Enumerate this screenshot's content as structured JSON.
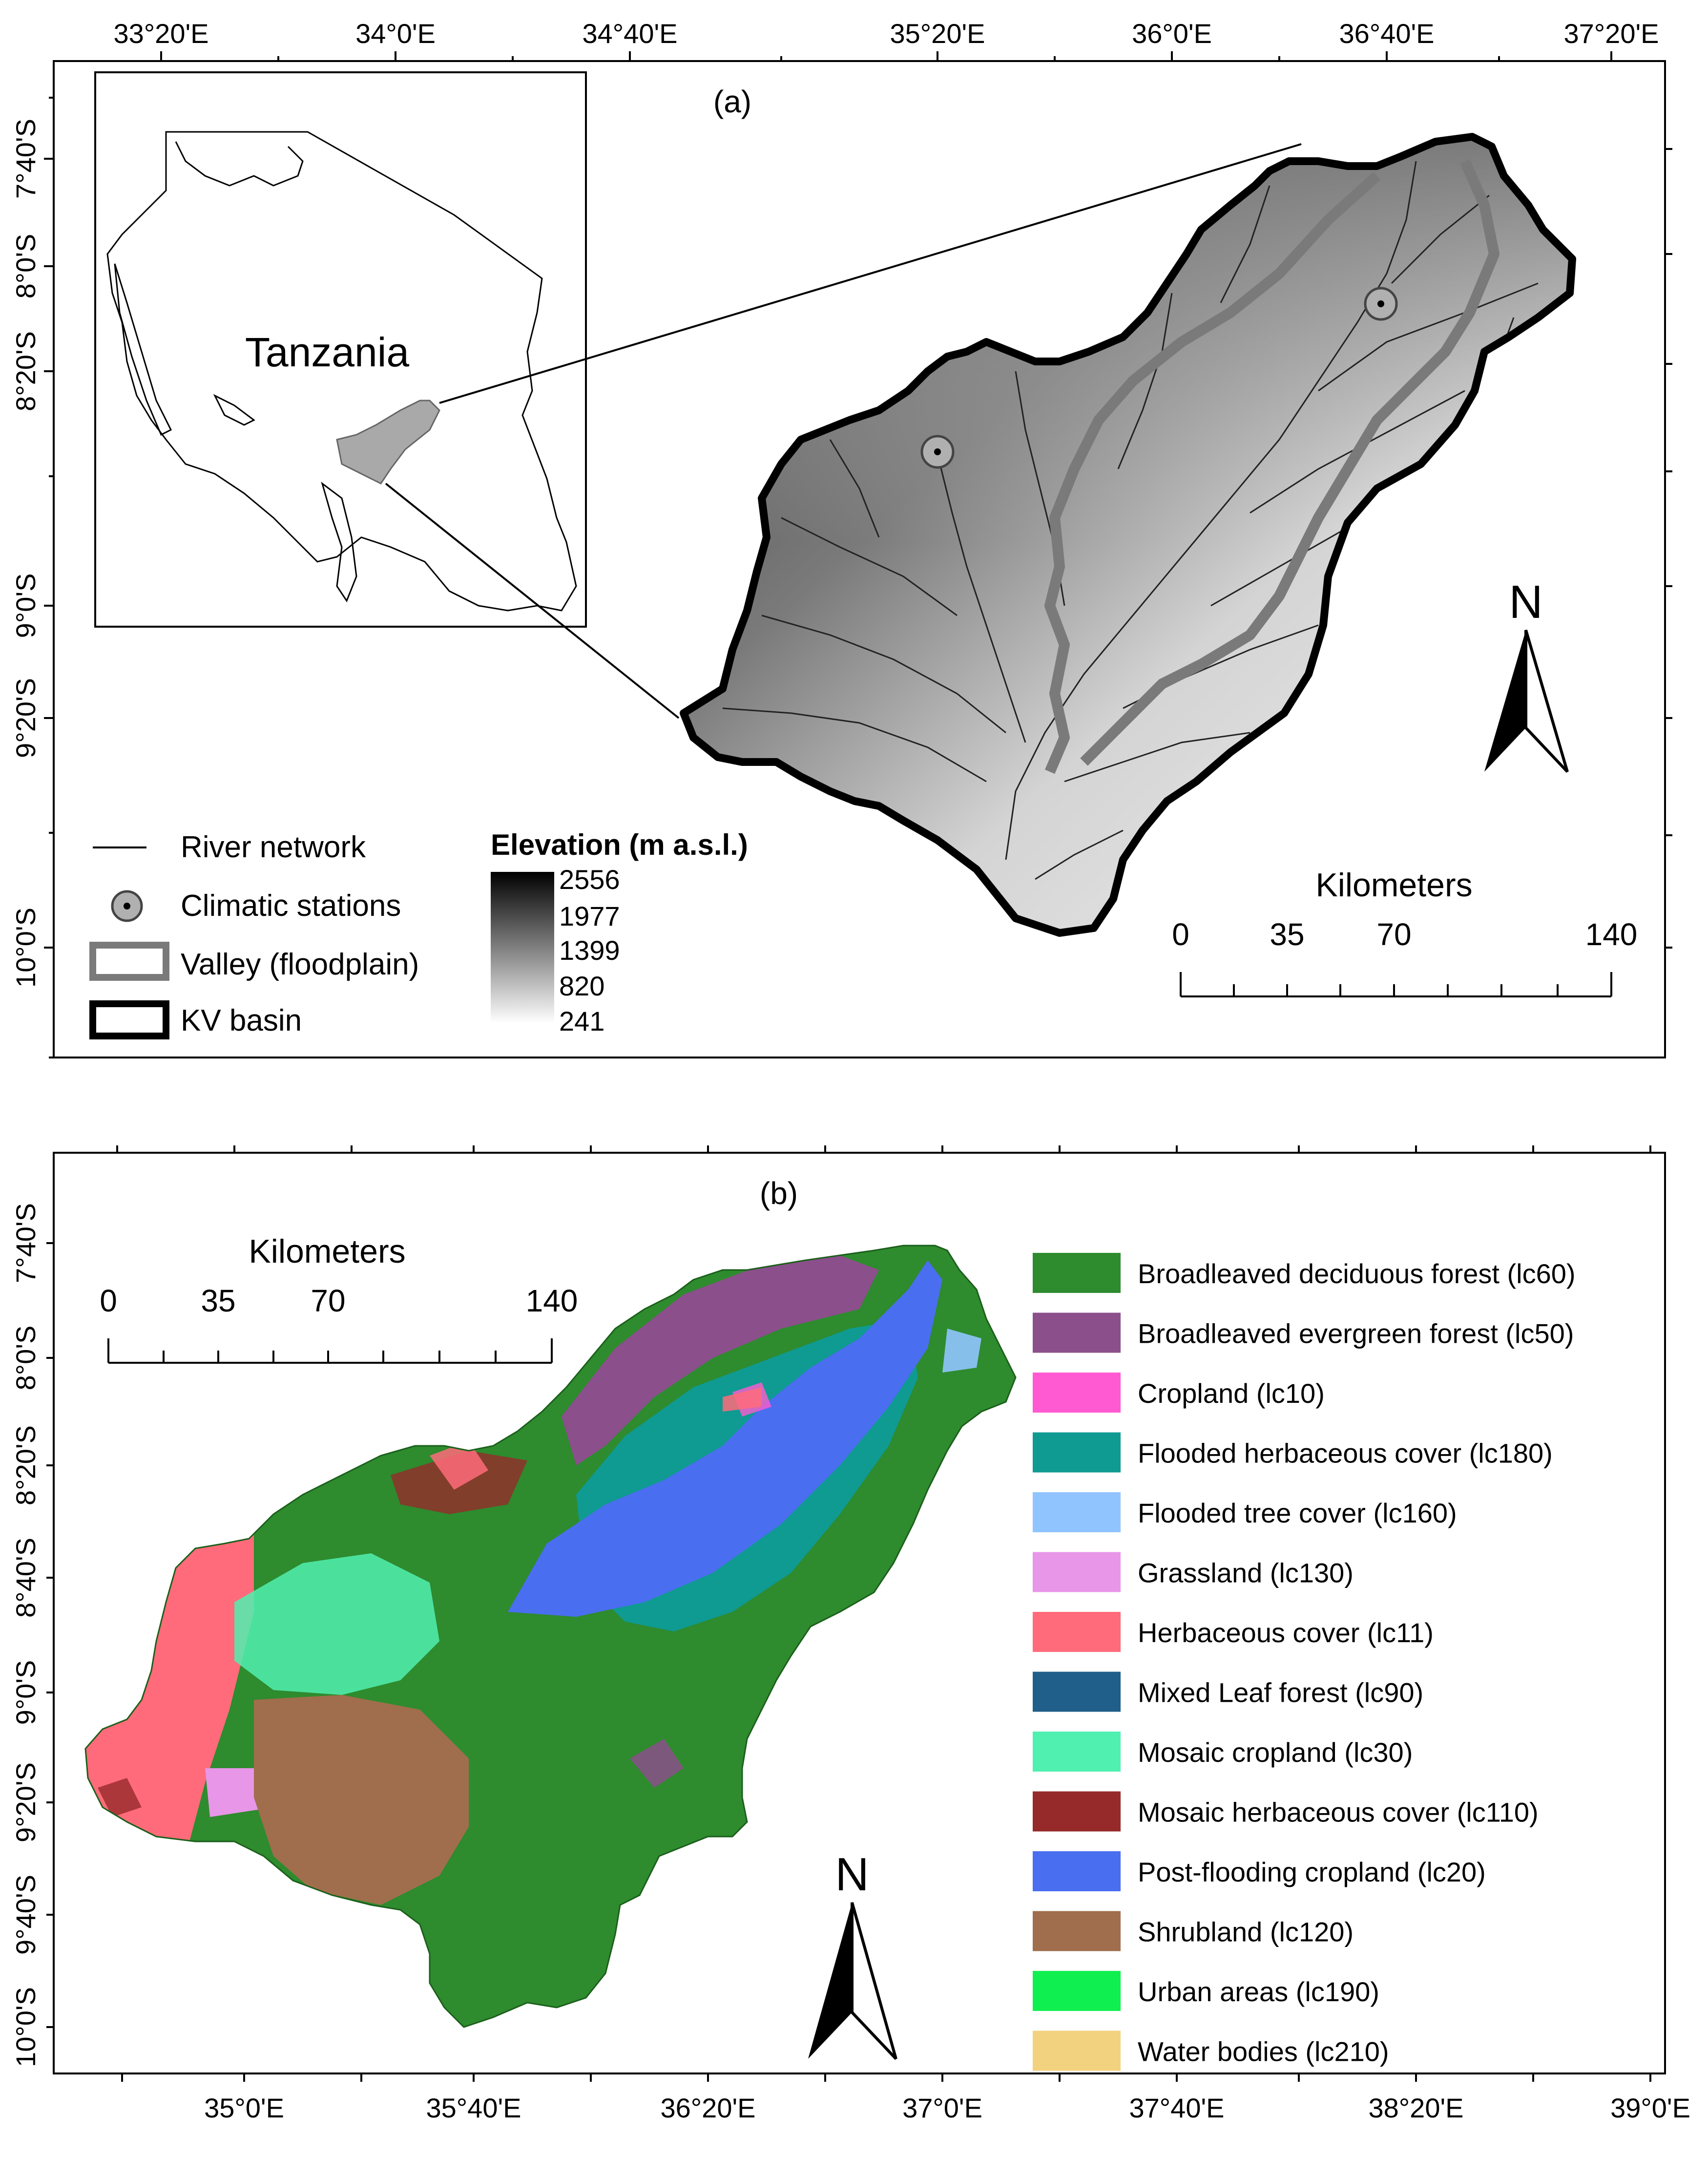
{
  "panel_a": {
    "label": "(a)",
    "top_ticks": [
      "33°20'E",
      "34°0'E",
      "34°40'E",
      "35°20'E",
      "36°0'E",
      "36°40'E",
      "37°20'E"
    ],
    "left_ticks": [
      "7°40'S",
      "8°0'S",
      "8°20'S",
      "9°0'S",
      "9°20'S",
      "10°0'S"
    ],
    "inset_label": "Tanzania",
    "legend": {
      "river": "River network",
      "stations": "Climatic stations",
      "valley": "Valley (floodplain)",
      "basin": "KV basin"
    },
    "elevation": {
      "title": "Elevation (m a.s.l.)",
      "values": [
        "2556",
        "1977",
        "1399",
        "820",
        "241"
      ]
    },
    "scalebar": {
      "title": "Kilometers",
      "labels": [
        "0",
        "35",
        "70",
        "140"
      ]
    },
    "north": "N"
  },
  "panel_b": {
    "label": "(b)",
    "bottom_ticks": [
      "35°0'E",
      "35°40'E",
      "36°20'E",
      "37°0'E",
      "37°40'E",
      "38°20'E",
      "39°0'E"
    ],
    "left_ticks": [
      "7°40'S",
      "8°0'S",
      "8°20'S",
      "8°40'S",
      "9°0'S",
      "9°20'S",
      "9°40'S",
      "10°0'S"
    ],
    "scalebar": {
      "title": "Kilometers",
      "labels": [
        "0",
        "35",
        "70",
        "140"
      ]
    },
    "north": "N",
    "legend": [
      {
        "label": "Broadleaved deciduous forest (lc60)",
        "color": "#2e8b2e"
      },
      {
        "label": "Broadleaved evergreen forest (lc50)",
        "color": "#8b4f8b"
      },
      {
        "label": "Cropland (lc10)",
        "color": "#ff5ad2"
      },
      {
        "label": "Flooded herbaceous cover (lc180)",
        "color": "#0f9a92"
      },
      {
        "label": "Flooded tree cover (lc160)",
        "color": "#90c4ff"
      },
      {
        "label": "Grassland (lc130)",
        "color": "#e896e8"
      },
      {
        "label": "Herbaceous cover (lc11)",
        "color": "#ff6b7a"
      },
      {
        "label": "Mixed Leaf forest (lc90)",
        "color": "#1f5f8a"
      },
      {
        "label": "Mosaic cropland (lc30)",
        "color": "#50f0b0"
      },
      {
        "label": "Mosaic herbaceous cover (lc110)",
        "color": "#962a2a"
      },
      {
        "label": "Post-flooding cropland (lc20)",
        "color": "#4a6ef0"
      },
      {
        "label": "Shrubland (lc120)",
        "color": "#a06e4c"
      },
      {
        "label": "Urban areas (lc190)",
        "color": "#10ef50"
      },
      {
        "label": "Water bodies (lc210)",
        "color": "#f2d27e"
      }
    ]
  }
}
